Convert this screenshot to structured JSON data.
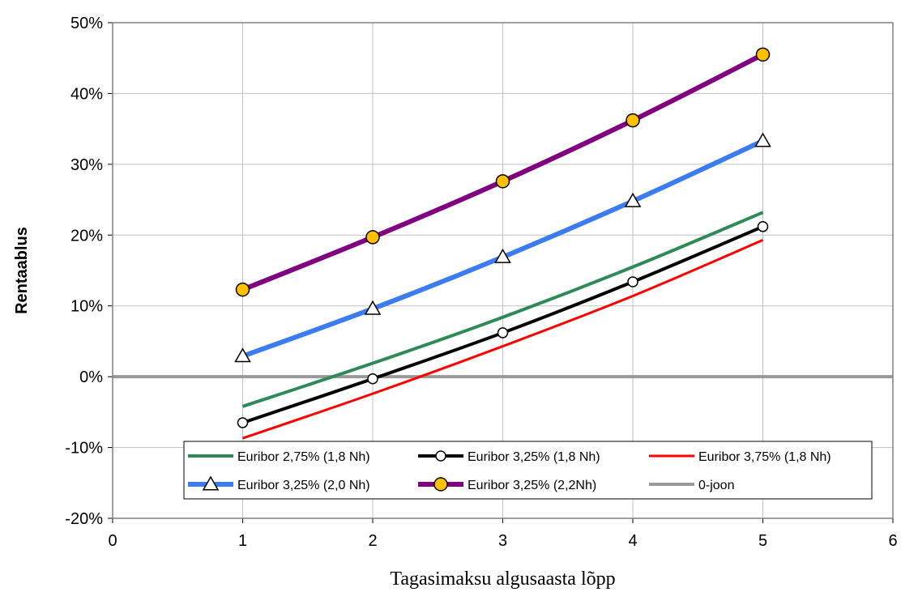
{
  "chart_data": {
    "type": "line",
    "title": "",
    "xlabel": "Tagasimaksu algusaasta lõpp",
    "ylabel": "Rentaablus",
    "xlim": [
      0,
      6
    ],
    "ylim": [
      -20,
      50
    ],
    "x_ticks": [
      "0",
      "1",
      "2",
      "3",
      "4",
      "5",
      "6"
    ],
    "y_ticks": [
      "-20%",
      "-10%",
      "0%",
      "10%",
      "20%",
      "30%",
      "40%",
      "50%"
    ],
    "grid": true,
    "legend_position": "bottom-right",
    "series": [
      {
        "name": "Euribor 2,75% (1,8 Nh)",
        "color": "#2e8b57",
        "marker": "none",
        "x": [
          1,
          2,
          3,
          4,
          5
        ],
        "values": [
          -4.2,
          1.9,
          8.4,
          15.5,
          23.2
        ]
      },
      {
        "name": "Euribor 3,25% (1,8 Nh)",
        "color": "#000000",
        "marker": "circle-white",
        "x": [
          1,
          2,
          3,
          4,
          5
        ],
        "values": [
          -6.5,
          -0.3,
          6.2,
          13.4,
          21.2
        ]
      },
      {
        "name": "Euribor 3,75% (1,8 Nh)",
        "color": "#ff0000",
        "marker": "none",
        "x": [
          1,
          2,
          3,
          4,
          5
        ],
        "values": [
          -8.7,
          -2.4,
          4.3,
          11.4,
          19.3
        ]
      },
      {
        "name": "Euribor 3,25% (2,0 Nh)",
        "color": "#3b7df0",
        "marker": "triangle-white",
        "x": [
          1,
          2,
          3,
          4,
          5
        ],
        "values": [
          2.9,
          9.6,
          16.9,
          24.8,
          33.3
        ]
      },
      {
        "name": "Euribor 3,25% (2,2Nh)",
        "color": "#800080",
        "marker": "circle-gold",
        "x": [
          1,
          2,
          3,
          4,
          5
        ],
        "values": [
          12.3,
          19.7,
          27.6,
          36.2,
          45.5
        ]
      },
      {
        "name": "0-joon",
        "color": "#999999",
        "marker": "none",
        "x": [
          0,
          6
        ],
        "values": [
          0,
          0
        ]
      }
    ]
  }
}
